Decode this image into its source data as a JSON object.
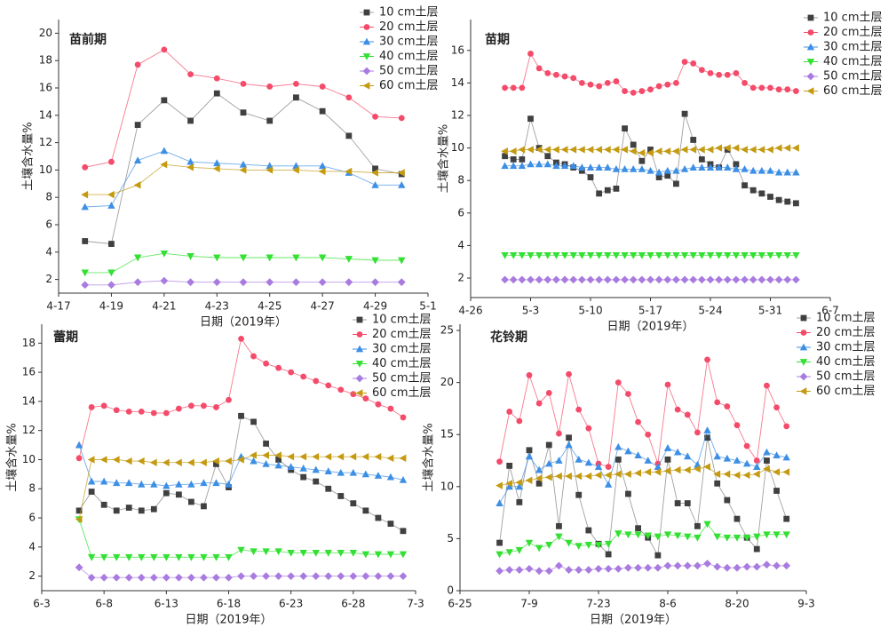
{
  "chart_data": [
    {
      "type": "line",
      "title": "苗前期",
      "xlabel": "日期（2019年）",
      "ylabel": "土壤含水量%",
      "xlim": [
        "4-17",
        "5-1"
      ],
      "xticks": [
        "4-17",
        "4-19",
        "4-21",
        "4-23",
        "4-25",
        "4-27",
        "4-29",
        "5-1"
      ],
      "ylim": [
        1,
        21
      ],
      "yticks": [
        2,
        4,
        6,
        8,
        10,
        12,
        14,
        16,
        18,
        20
      ],
      "x": [
        "4-18",
        "4-19",
        "4-20",
        "4-21",
        "4-22",
        "4-23",
        "4-24",
        "4-25",
        "4-26",
        "4-27",
        "4-28",
        "4-29",
        "4-30"
      ],
      "series": [
        {
          "name": "10 cm土层",
          "color": "#404040",
          "marker": "square",
          "values": [
            4.8,
            4.6,
            13.3,
            15.1,
            13.6,
            15.6,
            14.2,
            13.6,
            15.3,
            14.3,
            12.5,
            10.1,
            9.7
          ]
        },
        {
          "name": "20 cm土层",
          "color": "#f44b6a",
          "marker": "circle",
          "values": [
            10.2,
            10.6,
            17.7,
            18.8,
            17.0,
            16.7,
            16.3,
            16.1,
            16.3,
            16.1,
            15.3,
            13.9,
            13.8
          ]
        },
        {
          "name": "30 cm土层",
          "color": "#3d8fe6",
          "marker": "triangle-up",
          "values": [
            7.3,
            7.4,
            10.7,
            11.4,
            10.6,
            10.5,
            10.4,
            10.3,
            10.3,
            10.3,
            9.8,
            8.9,
            8.9
          ]
        },
        {
          "name": "40 cm土层",
          "color": "#33e033",
          "marker": "triangle-down",
          "values": [
            2.5,
            2.5,
            3.6,
            3.9,
            3.7,
            3.6,
            3.6,
            3.6,
            3.6,
            3.6,
            3.5,
            3.4,
            3.4
          ]
        },
        {
          "name": "50 cm土层",
          "color": "#a97be0",
          "marker": "diamond",
          "values": [
            1.6,
            1.6,
            1.8,
            1.9,
            1.8,
            1.8,
            1.8,
            1.8,
            1.8,
            1.8,
            1.8,
            1.8,
            1.8
          ]
        },
        {
          "name": "60 cm土层",
          "color": "#c49a10",
          "marker": "triangle-left",
          "values": [
            8.2,
            8.2,
            8.9,
            10.4,
            10.2,
            10.1,
            10.0,
            10.0,
            10.0,
            9.9,
            9.9,
            9.8,
            9.8
          ]
        }
      ]
    },
    {
      "type": "line",
      "title": "苗期",
      "xlabel": "日期（2019年）",
      "ylabel": "土壤含水量%",
      "xlim": [
        "4-26",
        "6-7"
      ],
      "xticks": [
        "4-26",
        "5-3",
        "5-10",
        "5-17",
        "5-24",
        "5-31",
        "6-7"
      ],
      "ylim": [
        0.8,
        17.9
      ],
      "yticks": [
        2,
        4,
        6,
        8,
        10,
        12,
        14,
        16
      ],
      "x": [
        "4-30",
        "5-1",
        "5-2",
        "5-3",
        "5-4",
        "5-5",
        "5-6",
        "5-7",
        "5-8",
        "5-9",
        "5-10",
        "5-11",
        "5-12",
        "5-13",
        "5-14",
        "5-15",
        "5-16",
        "5-17",
        "5-18",
        "5-19",
        "5-20",
        "5-21",
        "5-22",
        "5-23",
        "5-24",
        "5-25",
        "5-26",
        "5-27",
        "5-28",
        "5-29",
        "5-30",
        "5-31",
        "6-1",
        "6-2",
        "6-3"
      ],
      "series": [
        {
          "name": "10 cm土层",
          "color": "#404040",
          "marker": "square",
          "values": [
            9.5,
            9.3,
            9.3,
            11.8,
            10.0,
            9.5,
            9.1,
            9.0,
            8.8,
            8.6,
            8.2,
            7.2,
            7.4,
            7.5,
            11.2,
            10.2,
            9.2,
            9.9,
            8.2,
            8.3,
            7.8,
            12.1,
            10.5,
            9.3,
            9.0,
            8.8,
            9.9,
            9.0,
            7.7,
            7.4,
            7.2,
            7.0,
            6.8,
            6.7,
            6.6
          ]
        },
        {
          "name": "20 cm土层",
          "color": "#f44b6a",
          "marker": "circle",
          "values": [
            13.7,
            13.7,
            13.7,
            15.8,
            14.9,
            14.6,
            14.5,
            14.4,
            14.3,
            14.0,
            13.9,
            13.8,
            14.0,
            14.1,
            13.5,
            13.4,
            13.5,
            13.6,
            13.8,
            13.9,
            14.0,
            15.3,
            15.2,
            14.8,
            14.6,
            14.5,
            14.5,
            14.6,
            14.0,
            13.7,
            13.7,
            13.7,
            13.6,
            13.6,
            13.5
          ]
        },
        {
          "name": "30 cm土层",
          "color": "#3d8fe6",
          "marker": "triangle-up",
          "values": [
            8.9,
            8.9,
            8.9,
            9.0,
            9.0,
            9.0,
            8.9,
            8.9,
            8.9,
            8.8,
            8.8,
            8.8,
            8.8,
            8.7,
            8.7,
            8.7,
            8.7,
            8.6,
            8.5,
            8.6,
            8.6,
            8.7,
            8.8,
            8.8,
            8.8,
            8.8,
            8.8,
            8.7,
            8.7,
            8.6,
            8.6,
            8.6,
            8.5,
            8.5,
            8.5
          ]
        },
        {
          "name": "40 cm土层",
          "color": "#33e033",
          "marker": "triangle-down",
          "values": [
            3.4,
            3.4,
            3.4,
            3.4,
            3.4,
            3.4,
            3.4,
            3.4,
            3.4,
            3.4,
            3.4,
            3.4,
            3.4,
            3.4,
            3.4,
            3.4,
            3.4,
            3.4,
            3.4,
            3.4,
            3.4,
            3.4,
            3.4,
            3.4,
            3.4,
            3.4,
            3.4,
            3.4,
            3.4,
            3.4,
            3.4,
            3.4,
            3.4,
            3.4,
            3.4
          ]
        },
        {
          "name": "50 cm土层",
          "color": "#a97be0",
          "marker": "diamond",
          "values": [
            1.9,
            1.9,
            1.9,
            1.9,
            1.9,
            1.9,
            1.9,
            1.9,
            1.9,
            1.9,
            1.9,
            1.9,
            1.9,
            1.9,
            1.9,
            1.9,
            1.9,
            1.9,
            1.9,
            1.9,
            1.9,
            1.9,
            1.9,
            1.9,
            1.9,
            1.9,
            1.9,
            1.9,
            1.9,
            1.9,
            1.9,
            1.9,
            1.9,
            1.9,
            1.9
          ]
        },
        {
          "name": "60 cm土层",
          "color": "#c49a10",
          "marker": "triangle-left",
          "values": [
            9.8,
            9.8,
            9.9,
            9.9,
            9.9,
            9.9,
            9.9,
            9.9,
            9.9,
            9.9,
            9.9,
            9.9,
            9.9,
            9.9,
            9.9,
            9.8,
            9.7,
            9.7,
            9.8,
            9.8,
            9.8,
            9.9,
            9.9,
            9.9,
            9.9,
            10.0,
            10.0,
            10.0,
            9.9,
            9.9,
            9.9,
            9.9,
            10.0,
            10.0,
            10.0
          ]
        }
      ]
    },
    {
      "type": "line",
      "title": "蕾期",
      "xlabel": "日期（2019年）",
      "ylabel": "土壤含水量%",
      "xlim": [
        "6-3",
        "7-3"
      ],
      "xticks": [
        "6-3",
        "6-8",
        "6-13",
        "6-18",
        "6-23",
        "6-28",
        "7-3"
      ],
      "ylim": [
        1,
        19.3
      ],
      "yticks": [
        2,
        4,
        6,
        8,
        10,
        12,
        14,
        16,
        18
      ],
      "x": [
        "6-6",
        "6-7",
        "6-8",
        "6-9",
        "6-10",
        "6-11",
        "6-12",
        "6-13",
        "6-14",
        "6-15",
        "6-16",
        "6-17",
        "6-18",
        "6-19",
        "6-20",
        "6-21",
        "6-22",
        "6-23",
        "6-24",
        "6-25",
        "6-26",
        "6-27",
        "6-28",
        "6-29",
        "6-30",
        "7-1",
        "7-2"
      ],
      "series": [
        {
          "name": "10 cm土层",
          "color": "#404040",
          "marker": "square",
          "values": [
            6.5,
            7.8,
            6.9,
            6.5,
            6.7,
            6.5,
            6.6,
            7.7,
            7.6,
            7.1,
            6.8,
            9.7,
            8.1,
            13.0,
            12.6,
            11.1,
            10.0,
            9.3,
            8.8,
            8.5,
            8.0,
            7.5,
            7.0,
            6.5,
            6.0,
            5.6,
            5.1
          ]
        },
        {
          "name": "20 cm土层",
          "color": "#f44b6a",
          "marker": "circle",
          "values": [
            10.1,
            13.6,
            13.7,
            13.4,
            13.3,
            13.3,
            13.2,
            13.2,
            13.5,
            13.7,
            13.7,
            13.6,
            14.1,
            18.3,
            17.1,
            16.6,
            16.3,
            16.0,
            15.7,
            15.4,
            15.1,
            14.8,
            14.5,
            14.2,
            13.8,
            13.5,
            12.9
          ]
        },
        {
          "name": "30 cm土层",
          "color": "#3d8fe6",
          "marker": "triangle-up",
          "values": [
            11.0,
            8.5,
            8.5,
            8.4,
            8.4,
            8.3,
            8.3,
            8.2,
            8.3,
            8.3,
            8.4,
            8.4,
            8.3,
            10.2,
            9.9,
            9.7,
            9.6,
            9.5,
            9.4,
            9.3,
            9.2,
            9.1,
            9.1,
            9.0,
            8.9,
            8.8,
            8.6
          ]
        },
        {
          "name": "40 cm土层",
          "color": "#33e033",
          "marker": "triangle-down",
          "values": [
            5.9,
            3.3,
            3.3,
            3.3,
            3.3,
            3.3,
            3.3,
            3.3,
            3.3,
            3.3,
            3.3,
            3.3,
            3.3,
            3.8,
            3.7,
            3.7,
            3.7,
            3.6,
            3.6,
            3.6,
            3.6,
            3.6,
            3.6,
            3.5,
            3.5,
            3.5,
            3.5
          ]
        },
        {
          "name": "50 cm土层",
          "color": "#a97be0",
          "marker": "diamond",
          "values": [
            2.6,
            1.9,
            1.9,
            1.9,
            1.9,
            1.9,
            1.9,
            1.9,
            1.9,
            1.9,
            1.9,
            1.9,
            1.9,
            2.0,
            2.0,
            2.0,
            2.0,
            2.0,
            2.0,
            2.0,
            2.0,
            2.0,
            2.0,
            2.0,
            2.0,
            2.0,
            2.0
          ]
        },
        {
          "name": "60 cm土层",
          "color": "#c49a10",
          "marker": "triangle-left",
          "values": [
            5.9,
            10.0,
            10.0,
            10.0,
            9.9,
            9.9,
            9.8,
            9.8,
            9.8,
            9.8,
            9.8,
            9.9,
            9.9,
            10.0,
            10.3,
            10.3,
            10.3,
            10.2,
            10.2,
            10.2,
            10.2,
            10.2,
            10.2,
            10.2,
            10.2,
            10.1,
            10.1
          ]
        }
      ]
    },
    {
      "type": "line",
      "title": "花铃期",
      "xlabel": "日期（2019年）",
      "ylabel": "土壤含水量%",
      "xlim": [
        "6-25",
        "9-3"
      ],
      "xticks": [
        "6-25",
        "7-9",
        "7-23",
        "8-6",
        "8-20",
        "9-3"
      ],
      "ylim": [
        0,
        25.6
      ],
      "yticks": [
        0,
        5,
        10,
        15,
        20,
        25
      ],
      "x": [
        "7-3",
        "7-5",
        "7-7",
        "7-9",
        "7-11",
        "7-13",
        "7-15",
        "7-17",
        "7-19",
        "7-21",
        "7-23",
        "7-25",
        "7-27",
        "7-29",
        "7-31",
        "8-2",
        "8-4",
        "8-6",
        "8-8",
        "8-10",
        "8-12",
        "8-14",
        "8-16",
        "8-18",
        "8-20",
        "8-22",
        "8-24",
        "8-26",
        "8-28",
        "8-30"
      ],
      "series": [
        {
          "name": "10 cm土层",
          "color": "#404040",
          "marker": "square",
          "values": [
            4.6,
            12.0,
            8.5,
            13.5,
            10.3,
            14.0,
            6.2,
            14.7,
            9.2,
            5.8,
            4.5,
            3.5,
            12.6,
            9.3,
            6.0,
            5.1,
            3.4,
            12.6,
            8.4,
            8.4,
            6.2,
            14.7,
            10.3,
            8.7,
            6.9,
            5.1,
            4.0,
            12.5,
            9.6,
            6.9
          ]
        },
        {
          "name": "20 cm土层",
          "color": "#f44b6a",
          "marker": "circle",
          "values": [
            12.4,
            17.2,
            16.3,
            20.7,
            18.0,
            19.0,
            15.1,
            20.8,
            17.4,
            15.6,
            12.2,
            11.9,
            20.0,
            18.9,
            16.2,
            15.0,
            12.2,
            19.8,
            17.4,
            16.9,
            15.2,
            22.2,
            18.1,
            17.7,
            15.9,
            13.9,
            12.5,
            19.7,
            17.6,
            15.8
          ]
        },
        {
          "name": "30 cm土层",
          "color": "#3d8fe6",
          "marker": "triangle-up",
          "values": [
            8.4,
            10.0,
            10.0,
            12.9,
            11.6,
            12.2,
            12.5,
            14.0,
            12.6,
            12.3,
            11.9,
            10.2,
            13.8,
            13.4,
            13.0,
            12.5,
            11.9,
            13.7,
            13.3,
            12.9,
            12.1,
            15.4,
            12.9,
            12.7,
            12.5,
            12.2,
            11.9,
            13.3,
            13.0,
            12.8
          ]
        },
        {
          "name": "40 cm土层",
          "color": "#33e033",
          "marker": "triangle-down",
          "values": [
            3.5,
            3.7,
            3.9,
            4.6,
            4.1,
            4.4,
            5.2,
            4.6,
            4.3,
            4.4,
            4.4,
            4.5,
            5.5,
            5.4,
            5.4,
            5.3,
            5.2,
            5.4,
            5.3,
            5.2,
            5.1,
            6.4,
            5.2,
            5.1,
            5.1,
            5.1,
            5.2,
            5.4,
            5.4,
            5.4
          ]
        },
        {
          "name": "50 cm土层",
          "color": "#a97be0",
          "marker": "diamond",
          "values": [
            1.9,
            2.0,
            2.0,
            2.1,
            1.9,
            1.9,
            2.4,
            2.0,
            2.0,
            2.0,
            2.1,
            2.1,
            2.1,
            2.2,
            2.2,
            2.2,
            2.2,
            2.4,
            2.4,
            2.4,
            2.4,
            2.6,
            2.3,
            2.2,
            2.2,
            2.3,
            2.3,
            2.5,
            2.4,
            2.4
          ]
        },
        {
          "name": "60 cm土层",
          "color": "#c49a10",
          "marker": "triangle-left",
          "values": [
            10.1,
            10.3,
            10.4,
            10.6,
            10.8,
            10.9,
            11.0,
            11.0,
            11.0,
            11.0,
            11.1,
            11.1,
            11.2,
            11.2,
            11.3,
            11.4,
            11.4,
            11.5,
            11.6,
            11.6,
            11.7,
            11.9,
            11.2,
            11.2,
            11.1,
            11.1,
            11.2,
            11.7,
            11.4,
            11.4
          ]
        }
      ]
    }
  ]
}
